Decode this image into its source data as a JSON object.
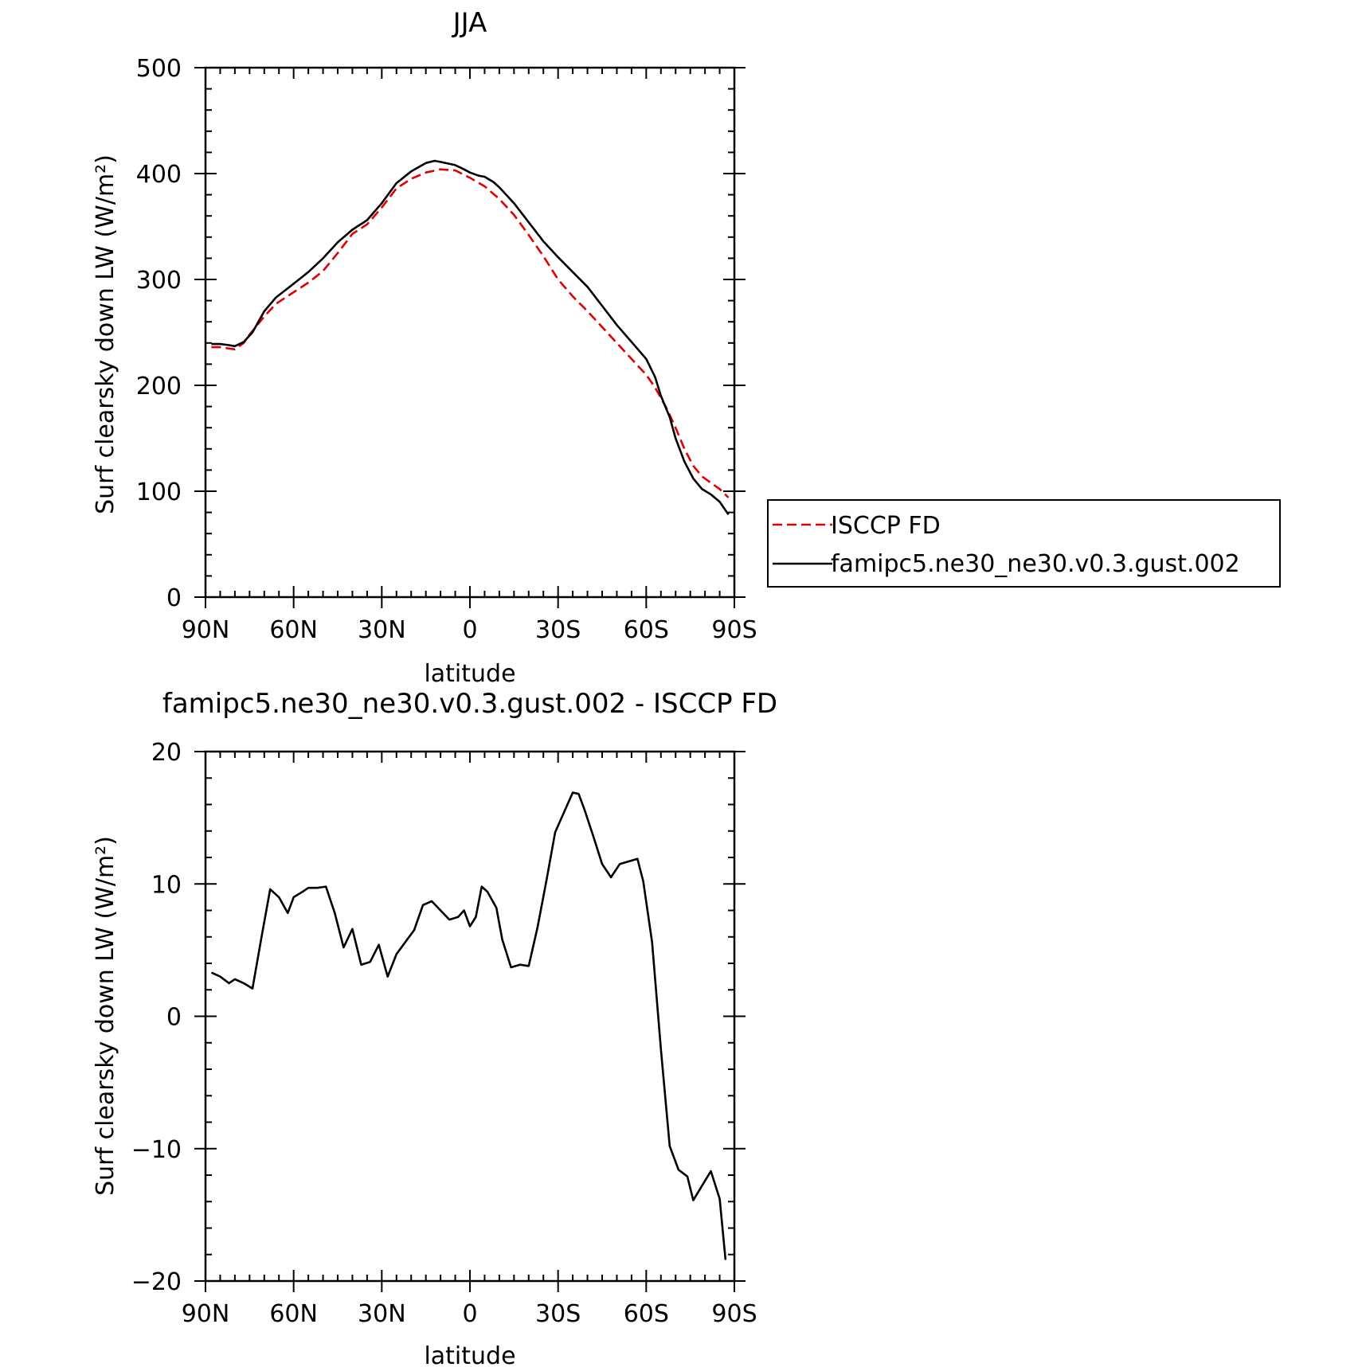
{
  "chart_data": [
    {
      "type": "line",
      "title": "JJA",
      "xlabel": "latitude",
      "ylabel": "Surf clearsky down LW (W/m²)",
      "xlim": [
        90,
        -90
      ],
      "ylim": [
        0,
        500
      ],
      "x_ticks": [
        {
          "value": 90,
          "label": "90N"
        },
        {
          "value": 60,
          "label": "60N"
        },
        {
          "value": 30,
          "label": "30N"
        },
        {
          "value": 0,
          "label": "0"
        },
        {
          "value": -30,
          "label": "30S"
        },
        {
          "value": -60,
          "label": "60S"
        },
        {
          "value": -90,
          "label": "90S"
        }
      ],
      "y_ticks": [
        {
          "value": 0,
          "label": "0"
        },
        {
          "value": 100,
          "label": "100"
        },
        {
          "value": 200,
          "label": "200"
        },
        {
          "value": 300,
          "label": "300"
        },
        {
          "value": 400,
          "label": "400"
        },
        {
          "value": 500,
          "label": "500"
        }
      ],
      "legend": "right",
      "series": [
        {
          "name": "ISCCP FD",
          "color": "#e00000",
          "dash": "dashed",
          "x": [
            88,
            85,
            80,
            77,
            75,
            70,
            66,
            60,
            55,
            50,
            45,
            40,
            35,
            30,
            25,
            20,
            15,
            10,
            5,
            0,
            -5,
            -10,
            -15,
            -20,
            -25,
            -30,
            -35,
            -40,
            -45,
            -50,
            -55,
            -60,
            -63,
            -67,
            -70,
            -73,
            -76,
            -79,
            -82,
            -85,
            -88
          ],
          "y": [
            236,
            236,
            234,
            240,
            248,
            265,
            277,
            288,
            297,
            308,
            325,
            343,
            352,
            368,
            386,
            395,
            401,
            404,
            403,
            396,
            388,
            376,
            361,
            342,
            322,
            300,
            284,
            270,
            255,
            240,
            225,
            210,
            198,
            178,
            160,
            140,
            124,
            114,
            108,
            102,
            94
          ]
        },
        {
          "name": "famipc5.ne30_ne30.v0.3.gust.002",
          "color": "#000000",
          "dash": "solid",
          "x": [
            88,
            85,
            82,
            80,
            77,
            74,
            70,
            66,
            60,
            55,
            50,
            45,
            40,
            35,
            30,
            25,
            20,
            15,
            12,
            10,
            5,
            2,
            0,
            -3,
            -5,
            -8,
            -10,
            -15,
            -20,
            -25,
            -30,
            -35,
            -40,
            -45,
            -50,
            -55,
            -60,
            -63,
            -65,
            -68,
            -70,
            -73,
            -76,
            -79,
            -82,
            -85,
            -88
          ],
          "y": [
            239,
            239,
            238,
            237,
            241,
            250,
            270,
            283,
            296,
            307,
            320,
            335,
            347,
            356,
            372,
            391,
            402,
            410,
            412,
            411,
            408,
            404,
            401,
            398,
            397,
            392,
            387,
            372,
            354,
            336,
            321,
            307,
            293,
            275,
            257,
            241,
            225,
            208,
            190,
            170,
            150,
            128,
            112,
            102,
            97,
            90,
            78
          ]
        }
      ]
    },
    {
      "type": "line",
      "title": "famipc5.ne30_ne30.v0.3.gust.002 - ISCCP FD",
      "xlabel": "latitude",
      "ylabel": "Surf clearsky down LW (W/m²)",
      "xlim": [
        90,
        -90
      ],
      "ylim": [
        -20,
        20
      ],
      "x_ticks": [
        {
          "value": 90,
          "label": "90N"
        },
        {
          "value": 60,
          "label": "60N"
        },
        {
          "value": 30,
          "label": "30N"
        },
        {
          "value": 0,
          "label": "0"
        },
        {
          "value": -30,
          "label": "30S"
        },
        {
          "value": -60,
          "label": "60S"
        },
        {
          "value": -90,
          "label": "90S"
        }
      ],
      "y_ticks": [
        {
          "value": -20,
          "label": "−20"
        },
        {
          "value": -10,
          "label": "−10"
        },
        {
          "value": 0,
          "label": "0"
        },
        {
          "value": 10,
          "label": "10"
        },
        {
          "value": 20,
          "label": "20"
        }
      ],
      "series": [
        {
          "color": "#000000",
          "dash": "solid",
          "x": [
            88,
            85,
            82,
            80,
            77,
            74,
            71,
            68,
            65,
            62,
            60,
            57,
            55,
            52,
            49,
            46,
            43,
            40,
            37,
            34,
            31,
            28,
            25,
            22,
            19,
            16,
            13,
            10,
            7,
            4,
            2,
            0,
            -2,
            -4,
            -6,
            -9,
            -11,
            -14,
            -17,
            -20,
            -23,
            -26,
            -29,
            -32,
            -35,
            -37,
            -39,
            -42,
            -45,
            -48,
            -51,
            -54,
            -57,
            -59,
            -62,
            -65,
            -68,
            -71,
            -74,
            -76,
            -79,
            -82,
            -85,
            -87
          ],
          "y": [
            3.3,
            3,
            2.5,
            2.8,
            2.5,
            2.1,
            5.9,
            9.6,
            9,
            7.8,
            9,
            9.4,
            9.7,
            9.7,
            9.8,
            7.8,
            5.2,
            6.6,
            3.9,
            4.1,
            5.4,
            3,
            4.7,
            5.6,
            6.5,
            8.4,
            8.7,
            8,
            7.3,
            7.5,
            8,
            6.8,
            7.5,
            9.8,
            9.4,
            8.2,
            5.8,
            3.7,
            3.9,
            3.8,
            6.7,
            10.2,
            13.9,
            15.4,
            16.9,
            16.8,
            15.6,
            13.6,
            11.5,
            10.5,
            11.5,
            11.7,
            11.9,
            10.2,
            5.6,
            -2.5,
            -9.8,
            -11.6,
            -12.1,
            -13.9,
            -12.8,
            -11.7,
            -13.8,
            -18.4
          ]
        }
      ]
    }
  ]
}
